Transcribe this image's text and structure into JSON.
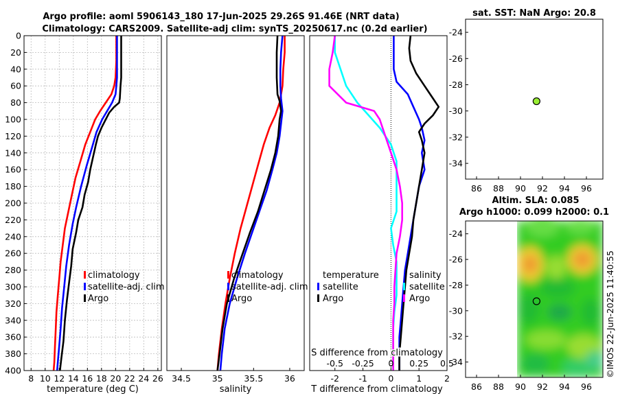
{
  "title": {
    "line1": "Argo profile: aoml 5906143_180 17-Jun-2025 29.26S 91.46E (NRT data)",
    "line2": "Climatology: CARS2009. Satellite-adj clim: synTS_20250617.nc (0.2d earlier)"
  },
  "colors": {
    "climatology": "#ff0000",
    "satellite": "#0000ff",
    "argo": "#000000",
    "cyan": "#00ffff",
    "magenta": "#ff00ff",
    "sst_dot": "#99ee33"
  },
  "chart_data": [
    {
      "type": "line",
      "name": "temperature",
      "xlabel": "temperature (deg C)",
      "xlim": [
        7,
        26.5
      ],
      "xticks": [
        8,
        10,
        12,
        14,
        16,
        18,
        20,
        22,
        24,
        26
      ],
      "ylim": [
        0,
        400
      ],
      "yticks": [
        0,
        20,
        40,
        60,
        80,
        100,
        120,
        140,
        160,
        180,
        200,
        220,
        240,
        260,
        280,
        300,
        320,
        340,
        360,
        380,
        400
      ],
      "legend": [
        "climatology",
        "satellite-adj. clim",
        "Argo"
      ],
      "series": [
        {
          "name": "climatology",
          "color": "#ff0000",
          "points": [
            [
              20.1,
              0
            ],
            [
              20.1,
              10
            ],
            [
              20.1,
              30
            ],
            [
              20.0,
              50
            ],
            [
              19.8,
              60
            ],
            [
              19.4,
              70
            ],
            [
              18.6,
              80
            ],
            [
              17.8,
              90
            ],
            [
              17.1,
              100
            ],
            [
              16.4,
              115
            ],
            [
              15.7,
              130
            ],
            [
              15.0,
              150
            ],
            [
              14.3,
              170
            ],
            [
              13.8,
              190
            ],
            [
              13.3,
              210
            ],
            [
              12.8,
              230
            ],
            [
              12.5,
              250
            ],
            [
              12.2,
              270
            ],
            [
              12.0,
              290
            ],
            [
              11.8,
              310
            ],
            [
              11.6,
              330
            ],
            [
              11.5,
              350
            ],
            [
              11.4,
              370
            ],
            [
              11.3,
              390
            ],
            [
              11.2,
              400
            ]
          ]
        },
        {
          "name": "satellite-adj. clim",
          "color": "#0000ff",
          "points": [
            [
              20.2,
              0
            ],
            [
              20.2,
              10
            ],
            [
              20.2,
              30
            ],
            [
              20.2,
              50
            ],
            [
              20.1,
              60
            ],
            [
              20.0,
              70
            ],
            [
              19.5,
              80
            ],
            [
              18.8,
              90
            ],
            [
              18.1,
              100
            ],
            [
              17.3,
              115
            ],
            [
              16.6,
              135
            ],
            [
              15.9,
              155
            ],
            [
              15.1,
              180
            ],
            [
              14.4,
              205
            ],
            [
              13.9,
              225
            ],
            [
              13.4,
              250
            ],
            [
              13.0,
              275
            ],
            [
              12.7,
              300
            ],
            [
              12.4,
              325
            ],
            [
              12.2,
              350
            ],
            [
              12.0,
              370
            ],
            [
              11.8,
              390
            ],
            [
              11.7,
              400
            ]
          ]
        },
        {
          "name": "Argo",
          "color": "#000000",
          "points": [
            [
              20.8,
              0
            ],
            [
              20.8,
              10
            ],
            [
              20.8,
              30
            ],
            [
              20.8,
              50
            ],
            [
              20.7,
              60
            ],
            [
              20.6,
              75
            ],
            [
              20.5,
              80
            ],
            [
              19.8,
              85
            ],
            [
              19.1,
              92
            ],
            [
              18.6,
              100
            ],
            [
              18.0,
              110
            ],
            [
              17.5,
              120
            ],
            [
              17.2,
              130
            ],
            [
              16.8,
              145
            ],
            [
              16.4,
              160
            ],
            [
              16.1,
              175
            ],
            [
              15.6,
              190
            ],
            [
              15.3,
              205
            ],
            [
              14.7,
              220
            ],
            [
              14.4,
              235
            ],
            [
              13.9,
              255
            ],
            [
              13.7,
              275
            ],
            [
              13.4,
              295
            ],
            [
              13.1,
              315
            ],
            [
              12.8,
              340
            ],
            [
              12.6,
              365
            ],
            [
              12.3,
              385
            ],
            [
              12.1,
              400
            ]
          ]
        }
      ]
    },
    {
      "type": "line",
      "name": "salinity",
      "xlabel": "salinity",
      "xlim": [
        34.3,
        36.2
      ],
      "xticks": [
        34.5,
        35,
        35.5,
        36
      ],
      "ylim": [
        0,
        400
      ],
      "legend": [
        "climatology",
        "satellite-adj. clim",
        "Argo"
      ],
      "series": [
        {
          "name": "climatology",
          "color": "#ff0000",
          "points": [
            [
              35.93,
              0
            ],
            [
              35.93,
              20
            ],
            [
              35.91,
              40
            ],
            [
              35.9,
              60
            ],
            [
              35.86,
              80
            ],
            [
              35.8,
              95
            ],
            [
              35.72,
              110
            ],
            [
              35.64,
              130
            ],
            [
              35.56,
              155
            ],
            [
              35.48,
              180
            ],
            [
              35.4,
              205
            ],
            [
              35.32,
              230
            ],
            [
              35.24,
              260
            ],
            [
              35.17,
              290
            ],
            [
              35.11,
              320
            ],
            [
              35.06,
              350
            ],
            [
              35.02,
              380
            ],
            [
              35.0,
              400
            ]
          ]
        },
        {
          "name": "satellite-adj. clim",
          "color": "#0000ff",
          "points": [
            [
              35.9,
              0
            ],
            [
              35.88,
              20
            ],
            [
              35.87,
              40
            ],
            [
              35.87,
              60
            ],
            [
              35.88,
              75
            ],
            [
              35.9,
              90
            ],
            [
              35.88,
              105
            ],
            [
              35.86,
              120
            ],
            [
              35.82,
              140
            ],
            [
              35.76,
              160
            ],
            [
              35.68,
              185
            ],
            [
              35.58,
              210
            ],
            [
              35.48,
              235
            ],
            [
              35.38,
              260
            ],
            [
              35.27,
              290
            ],
            [
              35.17,
              320
            ],
            [
              35.1,
              350
            ],
            [
              35.06,
              380
            ],
            [
              35.04,
              400
            ]
          ]
        },
        {
          "name": "Argo",
          "color": "#000000",
          "points": [
            [
              35.83,
              0
            ],
            [
              35.82,
              20
            ],
            [
              35.82,
              50
            ],
            [
              35.83,
              70
            ],
            [
              35.86,
              78
            ],
            [
              35.88,
              90
            ],
            [
              35.86,
              100
            ],
            [
              35.84,
              120
            ],
            [
              35.8,
              140
            ],
            [
              35.74,
              160
            ],
            [
              35.65,
              185
            ],
            [
              35.56,
              210
            ],
            [
              35.45,
              235
            ],
            [
              35.35,
              260
            ],
            [
              35.23,
              290
            ],
            [
              35.13,
              320
            ],
            [
              35.07,
              350
            ],
            [
              35.03,
              380
            ],
            [
              35.0,
              400
            ]
          ]
        }
      ]
    },
    {
      "type": "line",
      "name": "difference",
      "xlabel": "T difference from climatology",
      "xlabel_top": "S difference from climatology",
      "xlim": [
        -2.9,
        2.0
      ],
      "xticks": [
        -2,
        -1,
        0,
        1,
        2
      ],
      "s_ticks": [
        -0.5,
        -0.25,
        0,
        0.25,
        0.5
      ],
      "ylim": [
        0,
        400
      ],
      "legend_temperature": [
        "temperature",
        "satellite",
        "Argo"
      ],
      "legend_salinity": [
        "salinity",
        "satellite",
        "Argo"
      ],
      "series": [
        {
          "name": "T satellite",
          "color": "#0000ff",
          "points": [
            [
              0.1,
              0
            ],
            [
              0.1,
              20
            ],
            [
              0.1,
              40
            ],
            [
              0.2,
              55
            ],
            [
              0.6,
              70
            ],
            [
              0.8,
              85
            ],
            [
              1.0,
              100
            ],
            [
              1.1,
              110
            ],
            [
              1.2,
              125
            ],
            [
              1.1,
              140
            ],
            [
              1.2,
              160
            ],
            [
              1.0,
              180
            ],
            [
              0.9,
              200
            ],
            [
              0.8,
              220
            ],
            [
              0.7,
              240
            ],
            [
              0.6,
              260
            ],
            [
              0.5,
              280
            ],
            [
              0.45,
              300
            ],
            [
              0.4,
              320
            ],
            [
              0.35,
              340
            ],
            [
              0.3,
              360
            ],
            [
              0.3,
              380
            ],
            [
              0.3,
              400
            ]
          ]
        },
        {
          "name": "T Argo",
          "color": "#000000",
          "points": [
            [
              0.7,
              0
            ],
            [
              0.65,
              15
            ],
            [
              0.7,
              30
            ],
            [
              0.9,
              45
            ],
            [
              1.2,
              60
            ],
            [
              1.5,
              75
            ],
            [
              1.7,
              85
            ],
            [
              1.5,
              95
            ],
            [
              1.2,
              105
            ],
            [
              1.0,
              115
            ],
            [
              1.1,
              125
            ],
            [
              1.2,
              140
            ],
            [
              1.1,
              160
            ],
            [
              1.0,
              180
            ],
            [
              0.9,
              200
            ],
            [
              0.8,
              220
            ],
            [
              0.75,
              240
            ],
            [
              0.65,
              260
            ],
            [
              0.55,
              280
            ],
            [
              0.5,
              300
            ],
            [
              0.45,
              320
            ],
            [
              0.4,
              340
            ],
            [
              0.35,
              360
            ],
            [
              0.3,
              380
            ],
            [
              0.3,
              400
            ]
          ]
        },
        {
          "name": "S satellite",
          "color": "#00ffff",
          "points": [
            [
              -0.5,
              0
            ],
            [
              -0.5,
              20
            ],
            [
              -0.45,
              40
            ],
            [
              -0.4,
              60
            ],
            [
              -0.3,
              80
            ],
            [
              -0.2,
              95
            ],
            [
              -0.1,
              110
            ],
            [
              0.0,
              130
            ],
            [
              0.05,
              150
            ],
            [
              0.05,
              170
            ],
            [
              0.05,
              190
            ],
            [
              0.05,
              210
            ],
            [
              0.0,
              230
            ],
            [
              0.02,
              250
            ],
            [
              0.05,
              270
            ],
            [
              0.05,
              290
            ],
            [
              0.05,
              310
            ],
            [
              0.03,
              330
            ],
            [
              0.02,
              350
            ],
            [
              0.02,
              370
            ],
            [
              0.02,
              400
            ]
          ]
        },
        {
          "name": "S Argo",
          "color": "#ff00ff",
          "points": [
            [
              -0.5,
              0
            ],
            [
              -0.52,
              20
            ],
            [
              -0.55,
              40
            ],
            [
              -0.55,
              60
            ],
            [
              -0.4,
              80
            ],
            [
              -0.15,
              90
            ],
            [
              -0.1,
              100
            ],
            [
              -0.05,
              120
            ],
            [
              0.0,
              140
            ],
            [
              0.05,
              160
            ],
            [
              0.08,
              180
            ],
            [
              0.1,
              200
            ],
            [
              0.1,
              220
            ],
            [
              0.08,
              240
            ],
            [
              0.05,
              260
            ],
            [
              0.04,
              280
            ],
            [
              0.03,
              300
            ],
            [
              0.03,
              320
            ],
            [
              0.02,
              340
            ],
            [
              0.02,
              360
            ],
            [
              0.02,
              380
            ],
            [
              0.02,
              400
            ]
          ]
        }
      ]
    },
    {
      "type": "scatter",
      "name": "sst-map",
      "title": "sat. SST: NaN Argo: 20.8",
      "xlim": [
        85,
        97.5
      ],
      "ylim": [
        -35.2,
        -23
      ],
      "xticks": [
        86,
        88,
        90,
        92,
        94,
        96
      ],
      "yticks": [
        -24,
        -26,
        -28,
        -30,
        -32,
        -34
      ],
      "points": [
        {
          "x": 91.46,
          "y": -29.26
        }
      ]
    },
    {
      "type": "heatmap",
      "name": "sla-map",
      "title_line1": "Altim. SLA: 0.085",
      "title_line2": "Argo h1000: 0.099 h2000: 0.1",
      "xlim": [
        85,
        97.5
      ],
      "ylim": [
        -35.2,
        -23
      ],
      "xticks": [
        86,
        88,
        90,
        92,
        94,
        96
      ],
      "yticks": [
        -24,
        -26,
        -28,
        -30,
        -32,
        -34
      ],
      "data_extent_x": [
        90,
        97.5
      ],
      "points": [
        {
          "x": 91.46,
          "y": -29.26
        }
      ]
    }
  ],
  "timestamp": "©IMOS 22-Jun-2025 11:40:55"
}
